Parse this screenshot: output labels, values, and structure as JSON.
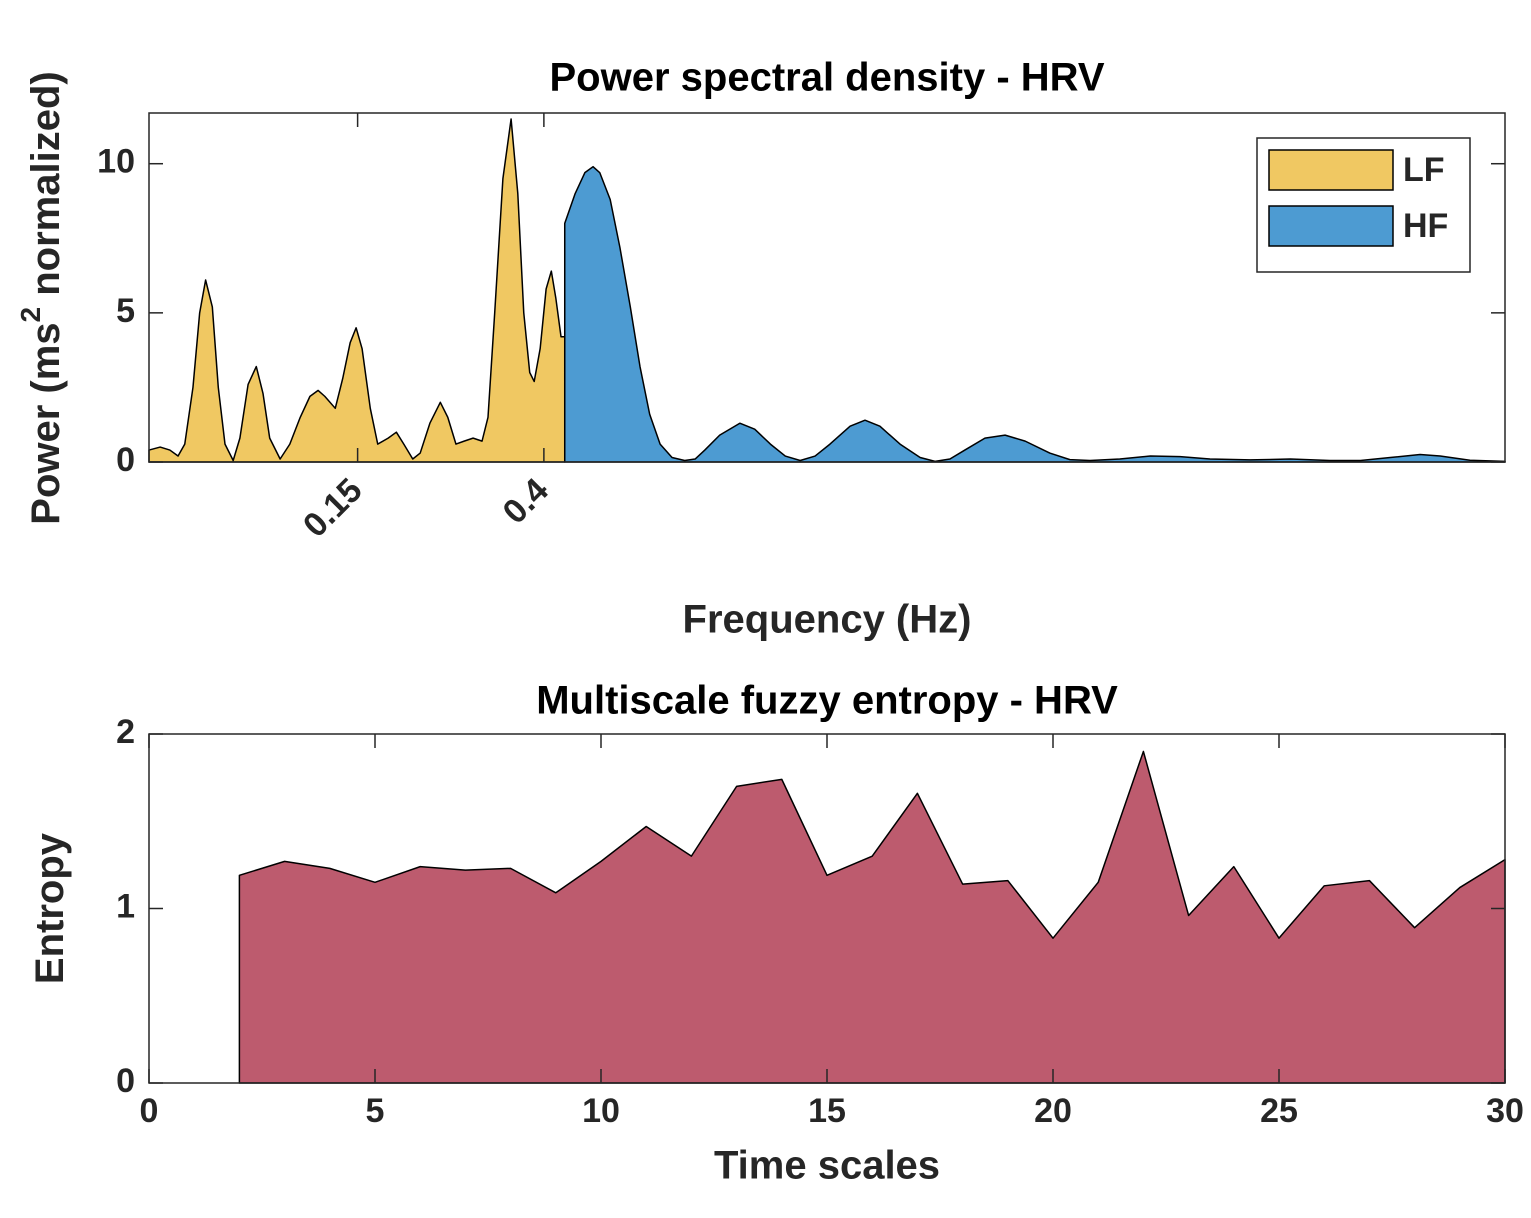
{
  "chart_data": [
    {
      "type": "area",
      "title": "Power spectral density - HRV",
      "xlabel": "Frequency (Hz)",
      "ylabel": [
        "Power (ms",
        "2",
        " normalized)"
      ],
      "xlim": [
        -0.13,
        1.69
      ],
      "xticks": [
        0.15,
        0.4
      ],
      "ylim": [
        0,
        11.7
      ],
      "yticks": [
        0,
        5,
        10
      ],
      "legend": "upper right",
      "series": [
        {
          "name": "LF",
          "color": "#f0c862",
          "x": [
            -0.13,
            -0.115,
            -0.102,
            -0.091,
            -0.082,
            -0.071,
            -0.062,
            -0.054,
            -0.045,
            -0.037,
            -0.028,
            -0.017,
            -0.008,
            0.003,
            0.014,
            0.023,
            0.032,
            0.046,
            0.059,
            0.073,
            0.086,
            0.097,
            0.106,
            0.12,
            0.13,
            0.14,
            0.148,
            0.156,
            0.167,
            0.177,
            0.191,
            0.202,
            0.212,
            0.224,
            0.234,
            0.247,
            0.261,
            0.271,
            0.282,
            0.293,
            0.305,
            0.317,
            0.325,
            0.334,
            0.345,
            0.356,
            0.365,
            0.373,
            0.381,
            0.387,
            0.395,
            0.403,
            0.41,
            0.416,
            0.423,
            0.428
          ],
          "values": [
            0.4,
            0.5,
            0.4,
            0.2,
            0.6,
            2.5,
            5.0,
            6.1,
            5.2,
            2.5,
            0.6,
            0.05,
            0.8,
            2.6,
            3.2,
            2.3,
            0.8,
            0.1,
            0.6,
            1.5,
            2.2,
            2.4,
            2.2,
            1.8,
            2.8,
            4.0,
            4.5,
            3.8,
            1.8,
            0.6,
            0.8,
            1.0,
            0.6,
            0.1,
            0.3,
            1.3,
            2.0,
            1.5,
            0.6,
            0.7,
            0.8,
            0.7,
            1.5,
            5.0,
            9.5,
            11.5,
            9.0,
            5.0,
            3.0,
            2.7,
            3.8,
            5.8,
            6.4,
            5.5,
            4.2,
            4.2
          ]
        },
        {
          "name": "HF",
          "color": "#4d9bd2",
          "x": [
            0.428,
            0.442,
            0.455,
            0.466,
            0.475,
            0.489,
            0.502,
            0.516,
            0.529,
            0.542,
            0.556,
            0.572,
            0.589,
            0.603,
            0.616,
            0.636,
            0.663,
            0.683,
            0.704,
            0.724,
            0.744,
            0.764,
            0.784,
            0.811,
            0.831,
            0.851,
            0.878,
            0.905,
            0.925,
            0.945,
            0.965,
            0.992,
            1.019,
            1.046,
            1.079,
            1.106,
            1.133,
            1.173,
            1.214,
            1.254,
            1.294,
            1.348,
            1.402,
            1.455,
            1.496,
            1.536,
            1.576,
            1.603,
            1.643,
            1.69
          ],
          "values": [
            8.0,
            9.0,
            9.7,
            9.9,
            9.7,
            8.8,
            7.2,
            5.2,
            3.2,
            1.6,
            0.6,
            0.15,
            0.05,
            0.1,
            0.4,
            0.9,
            1.3,
            1.1,
            0.6,
            0.2,
            0.05,
            0.2,
            0.6,
            1.2,
            1.4,
            1.2,
            0.6,
            0.15,
            0.02,
            0.1,
            0.4,
            0.8,
            0.9,
            0.7,
            0.3,
            0.08,
            0.05,
            0.1,
            0.2,
            0.18,
            0.1,
            0.07,
            0.1,
            0.05,
            0.05,
            0.15,
            0.25,
            0.2,
            0.06,
            0.02
          ]
        }
      ]
    },
    {
      "type": "area",
      "title": "Multiscale fuzzy entropy - HRV",
      "xlabel": "Time scales",
      "ylabel": [
        "Entropy"
      ],
      "xlim": [
        0,
        30
      ],
      "xticks": [
        0,
        5,
        10,
        15,
        20,
        25,
        30
      ],
      "ylim": [
        0,
        2
      ],
      "yticks": [
        0,
        1,
        2
      ],
      "series": [
        {
          "color": "#bd5b6e",
          "x": [
            2,
            3,
            4,
            5,
            6,
            7,
            8,
            9,
            10,
            11,
            12,
            13,
            14,
            15,
            16,
            17,
            18,
            19,
            20,
            21,
            22,
            23,
            24,
            25,
            26,
            27,
            28,
            29,
            30
          ],
          "values": [
            1.19,
            1.27,
            1.23,
            1.15,
            1.24,
            1.22,
            1.23,
            1.09,
            1.27,
            1.47,
            1.3,
            1.7,
            1.74,
            1.19,
            1.3,
            1.66,
            1.14,
            1.16,
            0.83,
            1.15,
            1.9,
            0.96,
            1.24,
            0.83,
            1.13,
            1.16,
            0.89,
            1.12,
            1.28
          ]
        }
      ]
    }
  ]
}
